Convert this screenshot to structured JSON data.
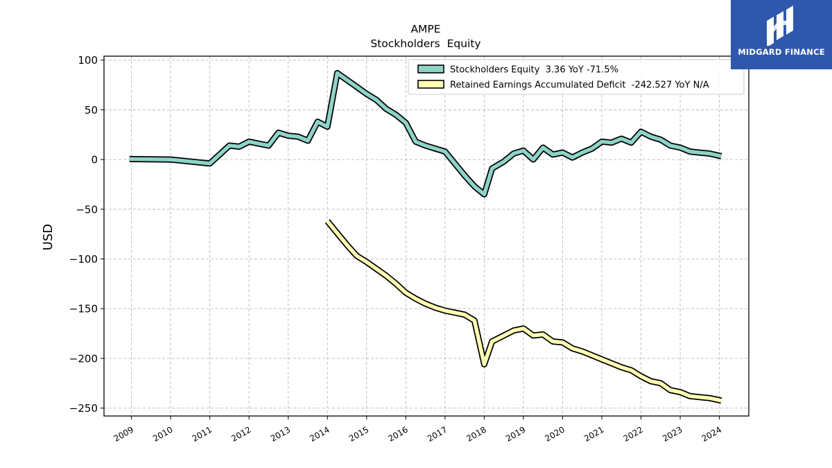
{
  "colors": {
    "equity": "#8dd3c7",
    "deficit": "#ffffb3",
    "outline": "#000000",
    "grid": "#b0b0b0",
    "logo_bg": "#2f58ad"
  },
  "logo": {
    "text": "MIDGARD FINANCE",
    "icon": "midgard-logo-icon"
  },
  "chart_data": {
    "type": "line",
    "title": "AMPE",
    "subtitle": "Stockholders  Equity",
    "ylabel": "USD",
    "xlabel": "",
    "ylim": [
      -258,
      104
    ],
    "xlim": [
      2008.3,
      2024.75
    ],
    "yticks": [
      100,
      50,
      0,
      -50,
      -100,
      -150,
      -200,
      -250
    ],
    "ytick_labels": [
      "100",
      "50",
      "0",
      "−50",
      "−100",
      "−150",
      "−200",
      "−250"
    ],
    "xticks": [
      2009,
      2010,
      2011,
      2012,
      2013,
      2014,
      2015,
      2016,
      2017,
      2018,
      2019,
      2020,
      2021,
      2022,
      2023,
      2024
    ],
    "xtick_labels": [
      "2009",
      "2010",
      "2011",
      "2012",
      "2013",
      "2014",
      "2015",
      "2016",
      "2017",
      "2018",
      "2019",
      "2020",
      "2021",
      "2022",
      "2023",
      "2024"
    ],
    "grid": true,
    "legend_position": "top-right",
    "series": [
      {
        "name": "Stockholders Equity  3.36 YoY -71.5%",
        "x": [
          2008.95,
          2010.0,
          2011.0,
          2011.5,
          2011.75,
          2012.0,
          2012.5,
          2012.75,
          2013.0,
          2013.25,
          2013.5,
          2013.75,
          2014.0,
          2014.25,
          2014.5,
          2014.75,
          2015.0,
          2015.25,
          2015.5,
          2015.75,
          2016.0,
          2016.25,
          2016.5,
          2016.75,
          2017.0,
          2017.25,
          2017.5,
          2017.75,
          2018.0,
          2018.2,
          2018.5,
          2018.75,
          2019.0,
          2019.25,
          2019.5,
          2019.75,
          2020.0,
          2020.25,
          2020.5,
          2020.75,
          2021.0,
          2021.25,
          2021.5,
          2021.75,
          2022.0,
          2022.25,
          2022.5,
          2022.75,
          2023.0,
          2023.25,
          2023.5,
          2023.75,
          2024.05
        ],
        "values": [
          0.5,
          0,
          -4,
          14,
          13,
          18,
          14,
          27,
          24,
          23,
          19,
          38,
          33,
          87,
          80,
          73,
          66,
          60,
          51,
          45,
          37,
          18,
          14,
          11,
          8,
          -4,
          -16,
          -27,
          -35,
          -9,
          -2,
          6,
          9,
          0,
          12,
          5,
          7,
          2,
          7,
          11,
          18,
          17,
          21,
          17,
          28,
          23,
          20,
          14,
          12,
          8,
          7,
          6,
          3.36
        ]
      },
      {
        "name": "Retained Earnings Accumulated Deficit  -242.527 YoY N/A",
        "x": [
          2014.0,
          2014.25,
          2014.5,
          2014.75,
          2015.0,
          2015.25,
          2015.5,
          2015.75,
          2016.0,
          2016.25,
          2016.5,
          2016.75,
          2017.0,
          2017.25,
          2017.5,
          2017.75,
          2018.0,
          2018.2,
          2018.5,
          2018.75,
          2019.0,
          2019.25,
          2019.5,
          2019.75,
          2020.0,
          2020.25,
          2020.5,
          2020.75,
          2021.0,
          2021.25,
          2021.5,
          2021.75,
          2022.0,
          2022.25,
          2022.5,
          2022.75,
          2023.0,
          2023.25,
          2023.5,
          2023.75,
          2024.05
        ],
        "values": [
          -62,
          -74,
          -86,
          -97,
          -103,
          -110,
          -117,
          -125,
          -134,
          -140,
          -145,
          -149,
          -152,
          -154,
          -156,
          -162,
          -206,
          -183,
          -177,
          -172,
          -170,
          -177,
          -176,
          -183,
          -184,
          -190,
          -193,
          -197,
          -201,
          -205,
          -209,
          -212,
          -218,
          -223,
          -225,
          -232,
          -234,
          -238,
          -239,
          -240,
          -242.527
        ]
      }
    ]
  }
}
